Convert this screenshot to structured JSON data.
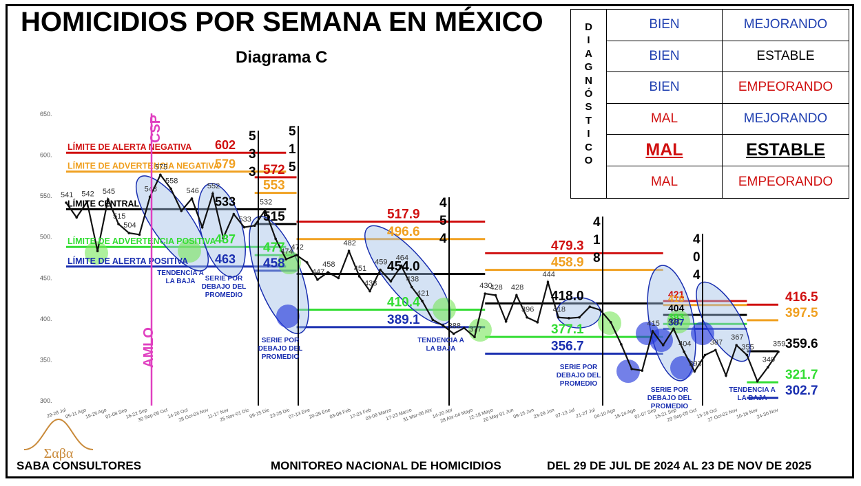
{
  "title": "HOMICIDIOS POR SEMANA EN MÉXICO",
  "subtitle": "Diagrama C",
  "footer": {
    "company": "SABA CONSULTORES",
    "monitor": "MONITOREO NACIONAL DE HOMICIDIOS",
    "period": "DEL 29 DE JUL DE 2024 AL 23 DE NOV DE 2025"
  },
  "logo_text": "Σαβα",
  "diagnostic": {
    "vertical_letters": [
      "D",
      "I",
      "A",
      "G",
      "N",
      "Ó",
      "S",
      "T",
      "I",
      "C",
      "O"
    ],
    "rows": [
      {
        "a": "BIEN",
        "b": "MEJORANDO",
        "a_color": "#1f3fb0",
        "b_color": "#1f3fb0",
        "bold": false
      },
      {
        "a": "BIEN",
        "b": "ESTABLE",
        "a_color": "#1f3fb0",
        "b_color": "#000000",
        "bold": false
      },
      {
        "a": "BIEN",
        "b": "EMPEORANDO",
        "a_color": "#1f3fb0",
        "b_color": "#d01010",
        "bold": false
      },
      {
        "a": "MAL",
        "b": "MEJORANDO",
        "a_color": "#d01010",
        "b_color": "#1f3fb0",
        "bold": false
      },
      {
        "a": "MAL",
        "b": "ESTABLE",
        "a_color": "#d01010",
        "b_color": "#000000",
        "bold": true
      },
      {
        "a": "MAL",
        "b": "EMPEORANDO",
        "a_color": "#d01010",
        "b_color": "#d01010",
        "bold": false
      }
    ]
  },
  "chart_data": {
    "type": "line",
    "ylim": [
      300,
      650
    ],
    "yticks": [
      "300.",
      "350.",
      "400.",
      "450.",
      "500.",
      "550.",
      "600.",
      "650."
    ],
    "x": [
      "29 Jul-04 Ago",
      "05-11 Ago",
      "12-18 Ago",
      "19-25 Ago",
      "26 Ago-01 Sep",
      "02-08 Sep",
      "09-15 Sep",
      "16-22 Sep",
      "23-29 Sep",
      "30 Sep-06 Oct",
      "07-13 Oct",
      "14-20 Oct",
      "21-27 Oct",
      "28 Oct-03 Nov",
      "04-10 Nov",
      "11-17 Nov",
      "18-24 Nov",
      "25 Nov-01 Dic",
      "02-08 Dic",
      "09-15 Dic",
      "16-22 Dic",
      "23-29 Dic",
      "30 Dic-05 Ene",
      "06-12 Ene",
      "13-19 Ene",
      "20-26 Ene",
      "27 Ene-02 Feb",
      "03-09 Feb",
      "10-16 Feb",
      "17-23 Feb",
      "24 Feb-02 Mar",
      "03-09 Marzo",
      "10-16 Marzo",
      "17-23 Marzo",
      "24-30 Marzo",
      "31 Mar-06 Abr",
      "07-13 Abr",
      "14-20 Abr",
      "21-27 Abr",
      "28 Abr-04 Mayo",
      "05-11 Mayo",
      "12-18 Mayo",
      "19-25 Mayo",
      "26 May-01 Jun",
      "02-08 Jun",
      "09-15 Jun",
      "16-22 Jun",
      "23-29 Jun",
      "30 Jun-06 Jul",
      "07-13 Jul",
      "14-20 Jul",
      "21-27 Jul",
      "28 Jul-03 Ago",
      "04-10 Ago",
      "11-17 Ago",
      "18-24 Ago",
      "25-31 Ago",
      "01-07 Sep",
      "08-14 Sep",
      "15-21 Sep",
      "22-28 Sep",
      "29 Sep-05 Oct",
      "06-12 Oct",
      "13-19 Oct",
      "20-26 Oct",
      "27 Oct-02 Nov",
      "03-09 Nov",
      "10-16 Nov",
      "17-23 Nov"
    ],
    "xticks_shown": [
      "29-28 Jul",
      "05-11 Ago",
      "19-25 Ago",
      "02-08 Sep",
      "16-22 Sep",
      "30 Sep-06 Oct",
      "14-20 Oct",
      "28 Oct-03 Nov",
      "11-17 Nov",
      "25 Nov-01 Dic",
      "09-15 Dic",
      "23-29 Dic",
      "07-13 Ene",
      "20-26 Ene",
      "03-09 Feb",
      "17-23 Feb",
      "03-09 Marzo",
      "17-23 Marzo",
      "31 Mar-06 Abr",
      "14-20 Abr",
      "28 Abr-04 Mayo",
      "12-18 Mayo",
      "26 May-01 Jun",
      "09-15 Jun",
      "23-29 Jun",
      "07-13 Jul",
      "21-27 Jul",
      "04-10 Ago",
      "18-24 Ago",
      "01-07 Sep",
      "15-21 Sep",
      "29 Sep-05 Oct",
      "13-19 Oct",
      "27 Oct-02 Nov",
      "10-16 Nov",
      "24-30 Nov"
    ],
    "values": [
      541,
      523,
      542,
      482,
      545,
      515,
      504,
      502,
      548,
      575,
      558,
      531,
      546,
      511,
      552,
      498,
      527,
      511,
      513,
      532,
      497,
      472,
      477,
      468,
      447,
      456,
      449,
      482,
      451,
      433,
      459,
      445,
      464,
      438,
      421,
      398,
      391,
      381,
      388,
      377,
      430,
      428,
      396,
      428,
      401,
      395,
      444,
      401,
      400,
      401,
      414,
      410,
      395,
      368,
      338,
      336,
      384,
      367,
      387,
      359,
      335,
      355,
      361,
      330,
      367,
      355,
      323,
      340,
      359
    ],
    "labels_shown": [
      541,
      542,
      545,
      515,
      504,
      548,
      575,
      558,
      546,
      552,
      533,
      532,
      474,
      472,
      447,
      458,
      482,
      451,
      433,
      459,
      464,
      438,
      421,
      388,
      377,
      430,
      428,
      428,
      396,
      444,
      418,
      415,
      421,
      404,
      393,
      387,
      367,
      355,
      340,
      359
    ],
    "segments": [
      {
        "name": "segment-1",
        "x_range": [
          0,
          21
        ],
        "central": 533,
        "limite_alerta_negativa": 602,
        "limite_advertencia_negativa": 579,
        "limite_advertencia_positiva": 487,
        "limite_alerta_positiva": 463
      },
      {
        "name": "segment-2",
        "x_range": [
          18,
          22
        ],
        "central": 515,
        "limite_alerta_negativa": 572,
        "limite_advertencia_negativa": 553,
        "limite_advertencia_positiva": 477,
        "limite_alerta_positiva": 458
      },
      {
        "name": "segment-3",
        "x_range": [
          22,
          40
        ],
        "central": 454.0,
        "limite_alerta_negativa": 517.9,
        "limite_advertencia_negativa": 496.6,
        "limite_advertencia_positiva": 410.4,
        "limite_alerta_positiva": 389.1
      },
      {
        "name": "segment-4",
        "x_range": [
          40,
          57
        ],
        "central": 418.0,
        "limite_alerta_negativa": 479.3,
        "limite_advertencia_negativa": 458.9,
        "limite_advertencia_positiva": 377.1,
        "limite_alerta_positiva": 356.7
      },
      {
        "name": "segment-5",
        "x_range": [
          57,
          65
        ],
        "central": 404,
        "limite_alerta_negativa": 421,
        "limite_advertencia_negativa": 416,
        "limite_advertencia_positiva": 393,
        "limite_alerta_positiva": 387
      },
      {
        "name": "segment-6",
        "x_range": [
          65,
          69
        ],
        "central": 359.6,
        "limite_alerta_negativa": 416.5,
        "limite_advertencia_negativa": 397.5,
        "limite_advertencia_positiva": 321.7,
        "limite_alerta_positiva": 302.7
      }
    ],
    "line_labels": {
      "alerta_negativa": "LÍMITE DE ALERTA NEGATIVA",
      "advertencia_negativa": "LÍMITE DE ADVERTENCIA NEGATIVA",
      "central": "LÍMITE CENTRAL",
      "advertencia_positiva": "LÍMITE DE ADVERTENCIA POSITIVA",
      "alerta_positiva": "LÍMITE DE ALERTA POSITIVA"
    },
    "segment_value_labels": {
      "s1": {
        "neg": "602",
        "adv": "579",
        "cen": "533",
        "advp": "487",
        "alp": "463"
      },
      "s2": {
        "neg": "572",
        "adv": "553",
        "cen": "515",
        "advp": "477",
        "alp": "458"
      },
      "s3": {
        "neg": "517.9",
        "adv": "496.6",
        "cen": "454.0",
        "advp": "410.4",
        "alp": "389.1"
      },
      "s4": {
        "neg": "479.3",
        "adv": "458.9",
        "cen": "418.0",
        "advp": "377.1",
        "alp": "356.7"
      },
      "s5": {
        "neg": "421",
        "adv": "416",
        "cen": "404",
        "advp": "393",
        "alp": "387"
      },
      "s6": {
        "neg": "416.5",
        "adv": "397.5",
        "cen": "359.6",
        "advp": "321.7",
        "alp": "302.7"
      }
    },
    "vertical_markers": [
      {
        "label": "CSP",
        "color": "#e040c0"
      },
      {
        "label": "AMLO",
        "color": "#e040c0"
      }
    ],
    "dividers": [
      {
        "digits": [
          "5",
          "3",
          "3"
        ]
      },
      {
        "digits": [
          "5",
          "1",
          "5"
        ]
      },
      {
        "digits": [
          "4",
          "5",
          "4"
        ]
      },
      {
        "digits": [
          "4",
          "1",
          "8"
        ]
      },
      {
        "digits": [
          "4",
          "0",
          "4"
        ]
      }
    ],
    "annotations": [
      "TENDENCIA A LA BAJA",
      "SERIE POR DEBAJO DEL PROMEDIO",
      "SERIE POR DEBAJO DEL PROMEDIO",
      "TENDENCIA A LA BAJA",
      "SERIE POR DEBAJO DEL PROMEDIO",
      "SERIE POR DEBAJO DEL PROMEDIO",
      "TENDENCIA A LA BAJA"
    ],
    "colors": {
      "alerta_negativa": "#d01010",
      "advertencia_negativa": "#f0a020",
      "central": "#000000",
      "advertencia_positiva": "#33dd33",
      "alerta_positiva": "#1a2fb0",
      "series": "#111111",
      "highlight": "#6b7fa8"
    }
  }
}
